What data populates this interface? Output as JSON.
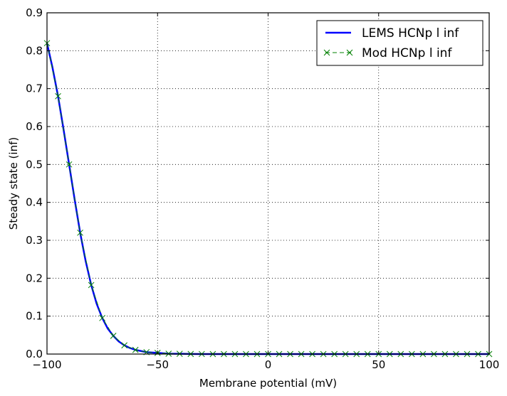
{
  "chart_data": {
    "type": "line",
    "xlabel": "Membrane potential (mV)",
    "ylabel": "Steady state (inf)",
    "xlim": [
      -100,
      100
    ],
    "ylim": [
      0,
      0.9
    ],
    "x_ticks": [
      -100,
      -50,
      0,
      50,
      100
    ],
    "x_tick_labels": [
      "−100",
      "−50",
      "0",
      "50",
      "100"
    ],
    "y_ticks": [
      0.0,
      0.1,
      0.2,
      0.3,
      0.4,
      0.5,
      0.6,
      0.7,
      0.8,
      0.9
    ],
    "y_tick_labels": [
      "0.0",
      "0.1",
      "0.2",
      "0.3",
      "0.4",
      "0.5",
      "0.6",
      "0.7",
      "0.8",
      "0.9"
    ],
    "grid": true,
    "legend_position": "top-right",
    "series": [
      {
        "name": "LEMS HCNp l inf",
        "color": "#0000ff",
        "style": "solid",
        "x": [
          -100,
          -97.5,
          -95,
          -92.5,
          -90,
          -87.5,
          -85,
          -82.5,
          -80,
          -77.5,
          -75,
          -72.5,
          -70,
          -67.5,
          -65,
          -62.5,
          -60,
          -57.5,
          -55,
          -52.5,
          -50,
          -45,
          -40,
          -35,
          -30,
          -20,
          -10,
          0,
          25,
          50,
          75,
          100
        ],
        "y": [
          0.82,
          0.755,
          0.68,
          0.592,
          0.5,
          0.408,
          0.32,
          0.245,
          0.182,
          0.132,
          0.095,
          0.067,
          0.048,
          0.033,
          0.023,
          0.016,
          0.011,
          0.008,
          0.005,
          0.004,
          0.003,
          0.001,
          0.0007,
          0.0003,
          0.0001,
          0,
          0,
          0,
          0,
          0,
          0,
          0
        ]
      },
      {
        "name": "Mod HCNp l inf",
        "color": "#008000",
        "style": "dashed-x",
        "x": [
          -100,
          -95,
          -90,
          -85,
          -80,
          -75,
          -70,
          -65,
          -60,
          -55,
          -50,
          -45,
          -40,
          -35,
          -30,
          -25,
          -20,
          -15,
          -10,
          -5,
          0,
          5,
          10,
          15,
          20,
          25,
          30,
          35,
          40,
          45,
          50,
          55,
          60,
          65,
          70,
          75,
          80,
          85,
          90,
          95,
          100
        ],
        "y": [
          0.82,
          0.68,
          0.5,
          0.32,
          0.182,
          0.095,
          0.048,
          0.023,
          0.011,
          0.005,
          0.003,
          0.001,
          0.0007,
          0.0003,
          0.0001,
          0,
          0,
          0,
          0,
          0,
          0,
          0,
          0,
          0,
          0,
          0,
          0,
          0,
          0,
          0,
          0,
          0,
          0,
          0,
          0,
          0,
          0,
          0,
          0,
          0,
          0
        ]
      }
    ]
  }
}
